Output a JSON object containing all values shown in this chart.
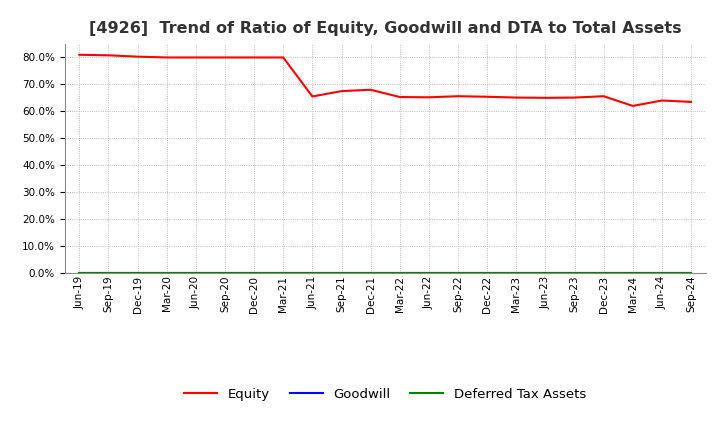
{
  "title": "[4926]  Trend of Ratio of Equity, Goodwill and DTA to Total Assets",
  "x_labels": [
    "Jun-19",
    "Sep-19",
    "Dec-19",
    "Mar-20",
    "Jun-20",
    "Sep-20",
    "Dec-20",
    "Mar-21",
    "Jun-21",
    "Sep-21",
    "Dec-21",
    "Mar-22",
    "Jun-22",
    "Sep-22",
    "Dec-22",
    "Mar-23",
    "Jun-23",
    "Sep-23",
    "Dec-23",
    "Mar-24",
    "Jun-24",
    "Sep-24"
  ],
  "equity": [
    0.81,
    0.808,
    0.803,
    0.8,
    0.8,
    0.8,
    0.8,
    0.8,
    0.655,
    0.675,
    0.68,
    0.653,
    0.652,
    0.656,
    0.654,
    0.651,
    0.65,
    0.651,
    0.656,
    0.62,
    0.64,
    0.635
  ],
  "goodwill": [
    0.0,
    0.0,
    0.0,
    0.0,
    0.0,
    0.0,
    0.0,
    0.0,
    0.0,
    0.0,
    0.0,
    0.0,
    0.0,
    0.0,
    0.0,
    0.0,
    0.0,
    0.0,
    0.0,
    0.0,
    0.0,
    0.0
  ],
  "dta": [
    0.0,
    0.0,
    0.0,
    0.0,
    0.0,
    0.0,
    0.0,
    0.0,
    0.0,
    0.0,
    0.0,
    0.0,
    0.0,
    0.0,
    0.0,
    0.0,
    0.0,
    0.0,
    0.0,
    0.0,
    0.0,
    0.0
  ],
  "equity_color": "#FF0000",
  "goodwill_color": "#0000FF",
  "dta_color": "#008000",
  "background_color": "#FFFFFF",
  "plot_bg_color": "#FFFFFF",
  "grid_color": "#AAAAAA",
  "ylim": [
    0.0,
    0.85
  ],
  "yticks": [
    0.0,
    0.1,
    0.2,
    0.3,
    0.4,
    0.5,
    0.6,
    0.7,
    0.8
  ],
  "legend_labels": [
    "Equity",
    "Goodwill",
    "Deferred Tax Assets"
  ],
  "title_fontsize": 11.5,
  "tick_fontsize": 7.5,
  "legend_fontsize": 9.5
}
